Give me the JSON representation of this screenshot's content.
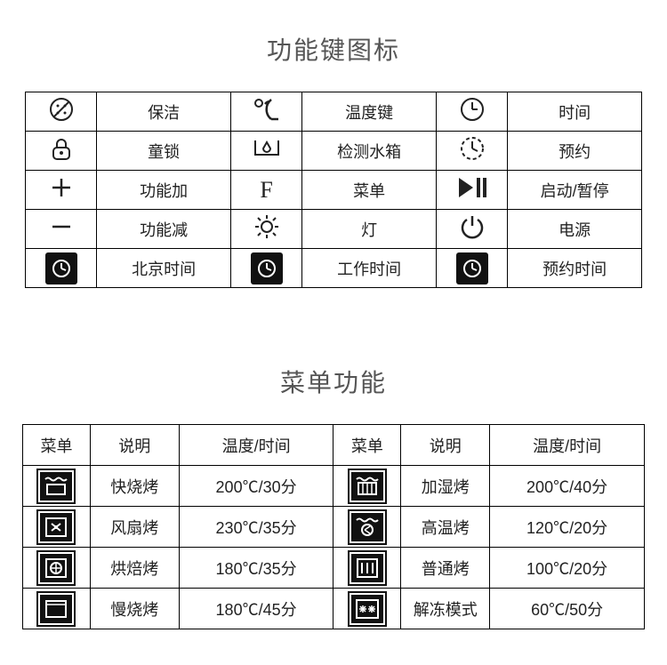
{
  "titles": {
    "section1": "功能键图标",
    "section2": "菜单功能"
  },
  "func_icons": {
    "rows": [
      [
        {
          "icon": "clean",
          "label": "保洁"
        },
        {
          "icon": "temp",
          "label": "温度键"
        },
        {
          "icon": "clock",
          "label": "时间"
        }
      ],
      [
        {
          "icon": "lock",
          "label": "童锁"
        },
        {
          "icon": "water",
          "label": "检测水箱"
        },
        {
          "icon": "timer",
          "label": "预约"
        }
      ],
      [
        {
          "icon": "plus",
          "label": "功能加"
        },
        {
          "icon": "F",
          "label": "菜单"
        },
        {
          "icon": "playpause",
          "label": "启动/暂停"
        }
      ],
      [
        {
          "icon": "minus",
          "label": "功能减"
        },
        {
          "icon": "lamp",
          "label": "灯"
        },
        {
          "icon": "power",
          "label": "电源"
        }
      ],
      [
        {
          "icon": "clock-bj",
          "label": "北京时间"
        },
        {
          "icon": "clock-work",
          "label": "工作时间"
        },
        {
          "icon": "clock-resv",
          "label": "预约时间"
        }
      ]
    ]
  },
  "menu_table": {
    "headers": {
      "menu": "菜单",
      "desc": "说明",
      "tt": "温度/时间"
    },
    "rows": [
      [
        {
          "icon": "oven-grill-fast",
          "desc": "快烧烤",
          "tt": "200℃/30分"
        },
        {
          "icon": "oven-steam",
          "desc": "加湿烤",
          "tt": "200℃/40分"
        }
      ],
      [
        {
          "icon": "oven-fan",
          "desc": "风扇烤",
          "tt": "230℃/35分"
        },
        {
          "icon": "oven-hightemp",
          "desc": "高温烤",
          "tt": "120℃/20分"
        }
      ],
      [
        {
          "icon": "oven-bake",
          "desc": "烘焙烤",
          "tt": "180℃/35分"
        },
        {
          "icon": "oven-normal",
          "desc": "普通烤",
          "tt": "100℃/20分"
        }
      ],
      [
        {
          "icon": "oven-slow",
          "desc": "慢烧烤",
          "tt": "180℃/45分"
        },
        {
          "icon": "oven-defrost",
          "desc": "解冻模式",
          "tt": "60℃/50分"
        }
      ]
    ]
  },
  "colors": {
    "border": "#000000",
    "text": "#222222",
    "title": "#555555",
    "bg": "#ffffff",
    "icon_box_bg": "#111111",
    "icon_fg": "#ffffff"
  }
}
